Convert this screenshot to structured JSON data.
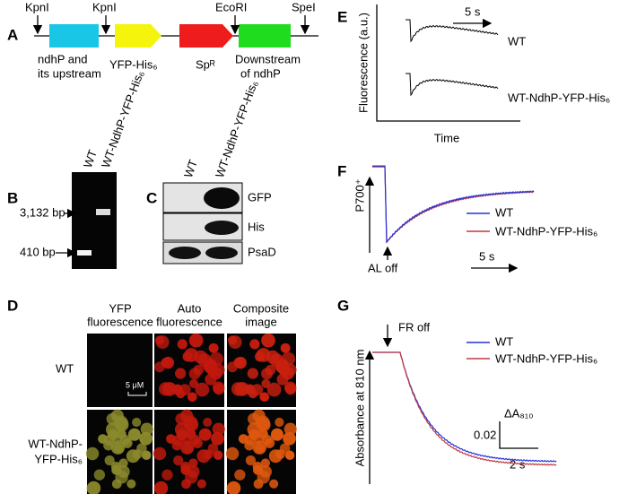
{
  "panel_a": {
    "letter": "A",
    "sites": [
      "KpnI",
      "KpnI",
      "EcoRI",
      "SpeI"
    ],
    "parts": [
      [
        "ndhP and",
        "its upstream"
      ],
      [
        "YFP-His₆"
      ],
      [
        "Spᴿ"
      ],
      [
        "Downstream",
        "of ndhP"
      ]
    ]
  },
  "panel_b": {
    "letter": "B",
    "lanes": [
      "WT",
      "WT-NdhP-YFP-His₆"
    ],
    "markers": [
      "3,132 bp",
      "410 bp"
    ]
  },
  "panel_c": {
    "letter": "C",
    "lanes": [
      "WT",
      "WT-NdhP-YFP-His₆"
    ],
    "blots": [
      "GFP",
      "His",
      "PsaD"
    ]
  },
  "panel_d": {
    "letter": "D",
    "columns": [
      [
        "YFP",
        "fluorescence"
      ],
      [
        "Auto",
        "fluorescence"
      ],
      [
        "Composite",
        "image"
      ]
    ],
    "rows": [
      [
        "WT"
      ],
      [
        "WT-NdhP-",
        "YFP-His₆"
      ]
    ],
    "scale_bar": "5 μM"
  },
  "panel_e": {
    "letter": "E",
    "time_scale": "5 s",
    "traces": [
      "WT",
      "WT-NdhP-YFP-His₆"
    ],
    "y_label": "Fluorescence (a.u.)",
    "x_label": "Time"
  },
  "panel_f": {
    "letter": "F",
    "y_label": "P700⁺",
    "legend": [
      "WT",
      "WT-NdhP-YFP-His₆"
    ],
    "event": "AL off",
    "time_scale": "5 s"
  },
  "panel_g": {
    "letter": "G",
    "event": "FR off",
    "legend": [
      "WT",
      "WT-NdhP-YFP-His₆"
    ],
    "y_label": "Absorbance at 810 nm",
    "scale_y": "0.02",
    "scale_y_unit": "ΔA₈₁₀",
    "time_scale": "2 s"
  }
}
